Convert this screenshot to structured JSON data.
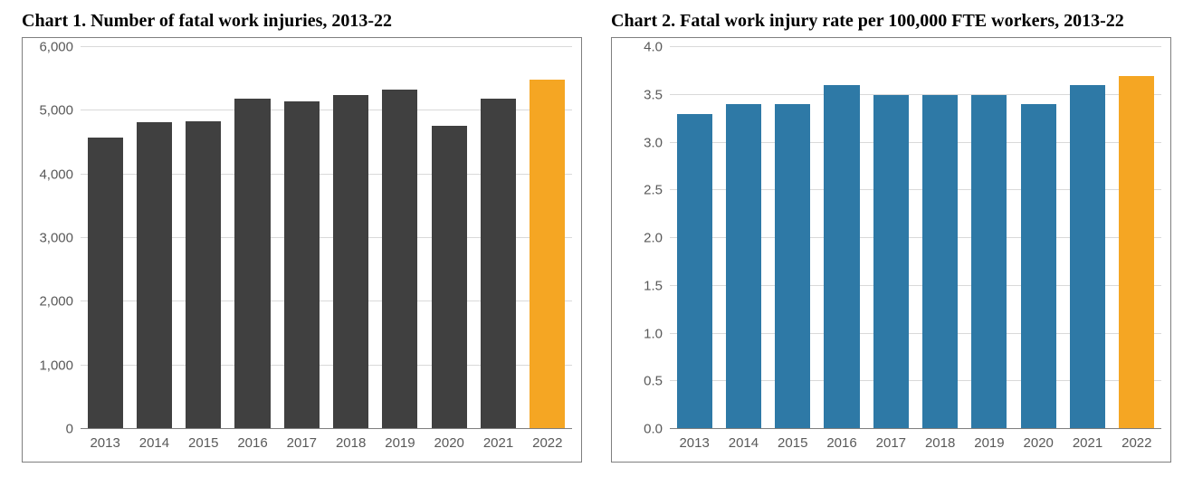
{
  "chart1": {
    "type": "bar",
    "title": "Chart 1. Number of fatal work injuries, 2013-22",
    "title_fontsize": 20,
    "title_fontweight": "bold",
    "background_color": "#ffffff",
    "plot_border_color": "#7f7f7f",
    "grid_color": "#d9d9d9",
    "axis_label_color": "#595959",
    "axis_label_fontsize": 15,
    "axis_font_family": "Arial",
    "ylim": [
      0,
      6000
    ],
    "ytick_step": 1000,
    "ytick_labels": [
      "0",
      "1,000",
      "2,000",
      "3,000",
      "4,000",
      "5,000",
      "6,000"
    ],
    "categories": [
      "2013",
      "2014",
      "2015",
      "2016",
      "2017",
      "2018",
      "2019",
      "2020",
      "2021",
      "2022"
    ],
    "values": [
      4585,
      4821,
      4836,
      5190,
      5147,
      5250,
      5333,
      4764,
      5190,
      5486
    ],
    "bar_colors": [
      "#404040",
      "#404040",
      "#404040",
      "#404040",
      "#404040",
      "#404040",
      "#404040",
      "#404040",
      "#404040",
      "#f5a623"
    ],
    "bar_width": 0.72
  },
  "chart2": {
    "type": "bar",
    "title": "Chart 2. Fatal work injury rate per 100,000 FTE workers, 2013-22",
    "title_fontsize": 20,
    "title_fontweight": "bold",
    "background_color": "#ffffff",
    "plot_border_color": "#7f7f7f",
    "grid_color": "#d9d9d9",
    "axis_label_color": "#595959",
    "axis_label_fontsize": 15,
    "axis_font_family": "Arial",
    "ylim": [
      0,
      4.0
    ],
    "ytick_step": 0.5,
    "ytick_labels": [
      "0.0",
      "0.5",
      "1.0",
      "1.5",
      "2.0",
      "2.5",
      "3.0",
      "3.5",
      "4.0"
    ],
    "categories": [
      "2013",
      "2014",
      "2015",
      "2016",
      "2017",
      "2018",
      "2019",
      "2020",
      "2021",
      "2022"
    ],
    "values": [
      3.3,
      3.4,
      3.4,
      3.6,
      3.5,
      3.5,
      3.5,
      3.4,
      3.6,
      3.7
    ],
    "bar_colors": [
      "#2e79a6",
      "#2e79a6",
      "#2e79a6",
      "#2e79a6",
      "#2e79a6",
      "#2e79a6",
      "#2e79a6",
      "#2e79a6",
      "#2e79a6",
      "#f5a623"
    ],
    "bar_width": 0.72
  }
}
